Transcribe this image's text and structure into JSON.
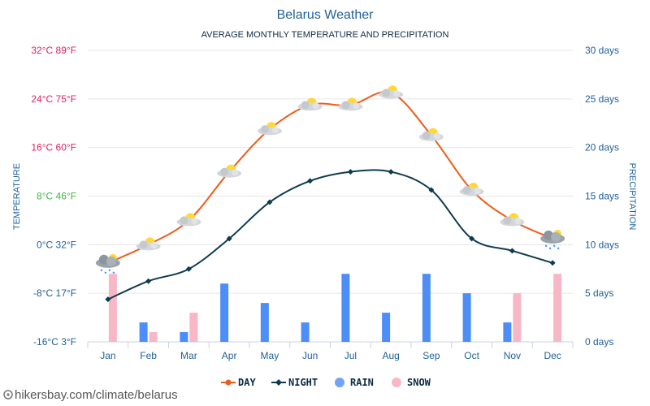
{
  "chart_data": {
    "type": "line",
    "title": "Belarus Weather",
    "subtitle": "AVERAGE MONTHLY TEMPERATURE AND PRECIPITATION",
    "categories": [
      "Jan",
      "Feb",
      "Mar",
      "Apr",
      "May",
      "Jun",
      "Jul",
      "Aug",
      "Sep",
      "Oct",
      "Nov",
      "Dec"
    ],
    "series": [
      {
        "name": "DAY",
        "kind": "line",
        "axis": "temperature",
        "color": "#f05a1a",
        "values": [
          -3,
          0,
          4,
          12,
          19,
          23,
          23,
          25,
          18,
          9,
          4,
          1
        ],
        "icons": [
          "snow",
          "sun-cloud",
          "sun-cloud",
          "sun-cloud",
          "sun-cloud",
          "sun-cloud",
          "sun-cloud",
          "sun-cloud",
          "sun-cloud",
          "sun-cloud",
          "sun-cloud",
          "snow"
        ]
      },
      {
        "name": "NIGHT",
        "kind": "line",
        "axis": "temperature",
        "color": "#0d3b4f",
        "values": [
          -9,
          -6,
          -4,
          1,
          7,
          10.5,
          12,
          12,
          9,
          1,
          -1,
          -3
        ]
      },
      {
        "name": "RAIN",
        "kind": "bar",
        "axis": "precipitation",
        "color": "#4d8df7",
        "values": [
          0,
          2,
          1,
          6,
          4,
          2,
          7,
          3,
          7,
          5,
          2,
          0
        ]
      },
      {
        "name": "SNOW",
        "kind": "bar",
        "axis": "precipitation",
        "color": "#f8b7c6",
        "values": [
          7,
          1,
          3,
          0,
          0,
          0,
          0,
          0,
          0,
          0,
          5,
          7
        ]
      }
    ],
    "y_left": {
      "label": "TEMPERATURE",
      "ylim": [
        -16,
        32
      ],
      "ticks": [
        {
          "value": 32,
          "text": "32°C 89°F",
          "color": "#e0245e"
        },
        {
          "value": 24,
          "text": "24°C 75°F",
          "color": "#e0245e"
        },
        {
          "value": 16,
          "text": "16°C 60°F",
          "color": "#e0245e"
        },
        {
          "value": 8,
          "text": "8°C 46°F",
          "color": "#3cb944"
        },
        {
          "value": 0,
          "text": "0°C 32°F",
          "color": "#1f5f99"
        },
        {
          "value": -8,
          "text": "-8°C 17°F",
          "color": "#1f5f99"
        },
        {
          "value": -16,
          "text": "-16°C 3°F",
          "color": "#1f5f99"
        }
      ]
    },
    "y_right": {
      "label": "PRECIPITATION",
      "ylim": [
        0,
        30
      ],
      "ticks": [
        {
          "value": 30,
          "text": "30 days"
        },
        {
          "value": 25,
          "text": "25 days"
        },
        {
          "value": 20,
          "text": "20 days"
        },
        {
          "value": 15,
          "text": "15 days"
        },
        {
          "value": 10,
          "text": "10 days"
        },
        {
          "value": 5,
          "text": "5 days"
        },
        {
          "value": 0,
          "text": "0 days"
        }
      ]
    },
    "grid": true,
    "legend": {
      "position": "bottom-center",
      "items": [
        "DAY",
        "NIGHT",
        "RAIN",
        "SNOW"
      ]
    }
  },
  "footer": {
    "source": "hikersbay.com/climate/belarus"
  },
  "colors": {
    "grid": "#e6e6e6",
    "axis": "#c8d4e0"
  }
}
